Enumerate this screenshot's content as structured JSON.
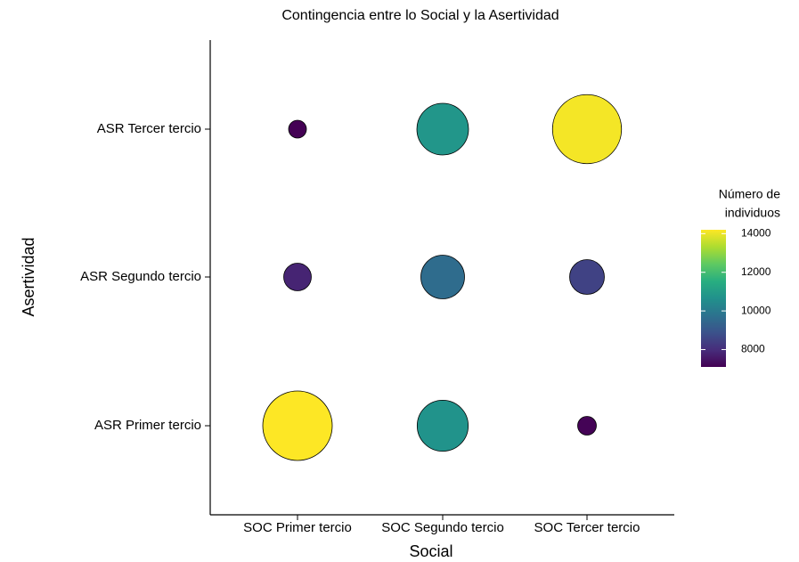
{
  "chart_data": {
    "type": "bubble",
    "title": "Contingencia entre lo Social y la Asertividad",
    "x_label": "Social",
    "y_label": "Asertividad",
    "x_categories": [
      "SOC Primer tercio",
      "SOC Segundo tercio",
      "SOC Tercer tercio"
    ],
    "y_categories": [
      "ASR Primer tercio",
      "ASR Segundo tercio",
      "ASR Tercer tercio"
    ],
    "x": [
      "SOC Primer tercio",
      "SOC Primer tercio",
      "SOC Primer tercio",
      "SOC Segundo tercio",
      "SOC Segundo tercio",
      "SOC Segundo tercio",
      "SOC Tercer tercio",
      "SOC Tercer tercio",
      "SOC Tercer tercio"
    ],
    "y": [
      "ASR Primer tercio",
      "ASR Segundo tercio",
      "ASR Tercer tercio",
      "ASR Primer tercio",
      "ASR Segundo tercio",
      "ASR Tercer tercio",
      "ASR Primer tercio",
      "ASR Segundo tercio",
      "ASR Tercer tercio"
    ],
    "values": [
      14200,
      7800,
      7100,
      10700,
      9600,
      10800,
      7150,
      8500,
      14100
    ],
    "legend_title": [
      "Número de",
      "individuos"
    ],
    "colorlim": [
      7100,
      14200
    ],
    "colorticks": [
      8000,
      10000,
      12000,
      14000
    ],
    "colorscale": [
      "#440154",
      "#472d7b",
      "#3b528b",
      "#2c728e",
      "#21918c",
      "#28ae80",
      "#5ec962",
      "#addc30",
      "#fde725"
    ]
  }
}
